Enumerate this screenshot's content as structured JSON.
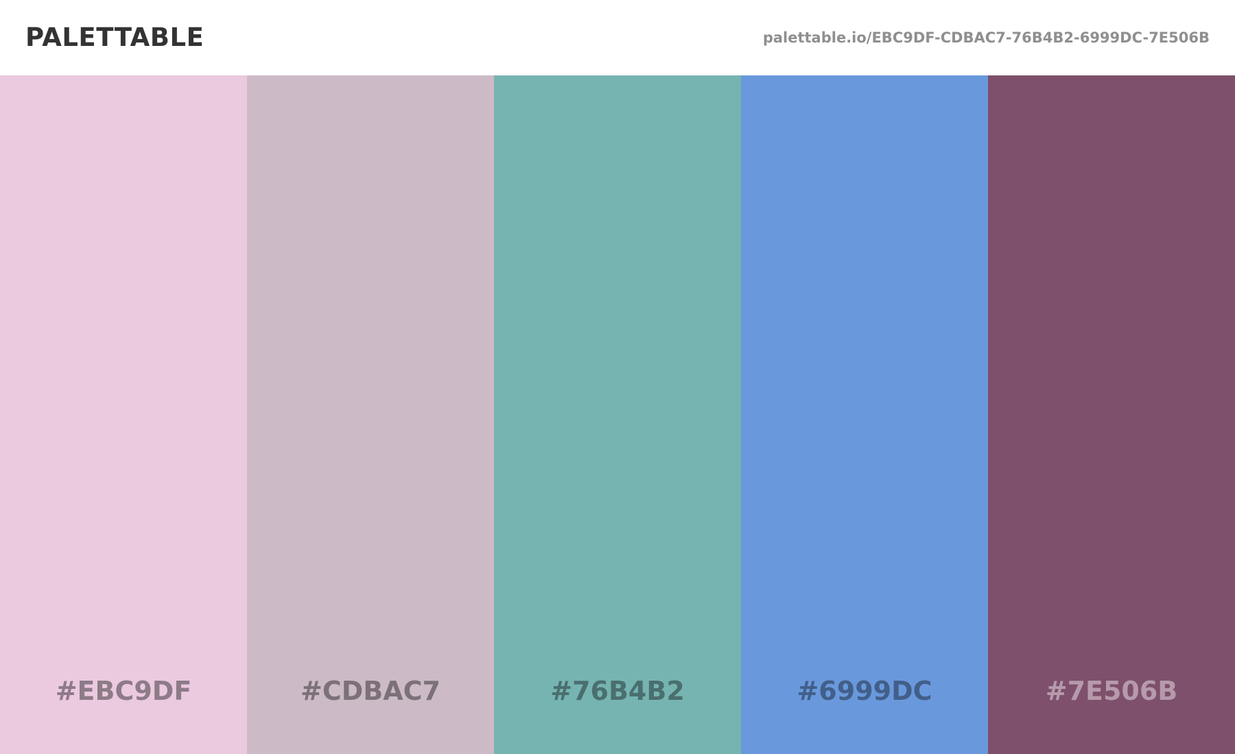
{
  "header": {
    "brand": "PALETTABLE",
    "url": "palettable.io/EBC9DF-CDBAC7-76B4B2-6999DC-7E506B"
  },
  "swatches": [
    {
      "hex": "#EBC9DF",
      "color": "#EBC9DF",
      "text_color": "#8d7b87"
    },
    {
      "hex": "#CDBAC7",
      "color": "#CDBAC7",
      "text_color": "#7c7179"
    },
    {
      "hex": "#76B4B2",
      "color": "#76B4B2",
      "text_color": "#4a6f6e"
    },
    {
      "hex": "#6999DC",
      "color": "#6999DC",
      "text_color": "#425f89"
    },
    {
      "hex": "#7E506B",
      "color": "#7E506B",
      "text_color": "#b69aab"
    }
  ]
}
